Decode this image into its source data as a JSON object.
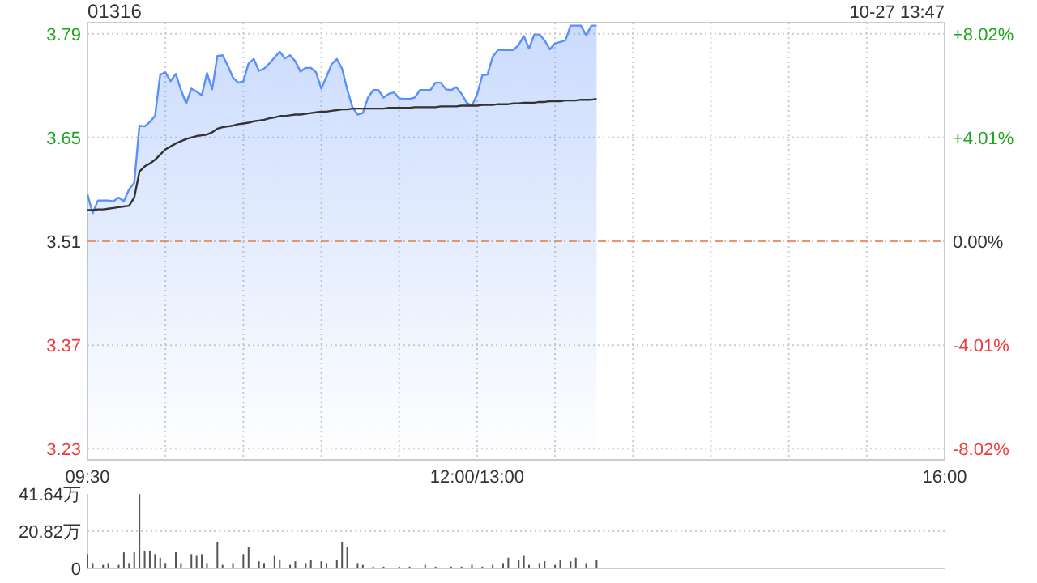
{
  "chart_data": [
    {
      "type": "line",
      "title": "01316",
      "annotations": [
        "10-27 13:47"
      ],
      "grid": true,
      "categories": [
        "09:30",
        null,
        null,
        null,
        null,
        null,
        null,
        null,
        null,
        null,
        null,
        null,
        null,
        null,
        null,
        null,
        null,
        null,
        null,
        null,
        null,
        null,
        null,
        null,
        null,
        null,
        null,
        null,
        null,
        null,
        null,
        null,
        null,
        null,
        null,
        null,
        null,
        null,
        null,
        null,
        null,
        null,
        null,
        null,
        null,
        null,
        null,
        null,
        null,
        null,
        null,
        null,
        null,
        null,
        null,
        null,
        null,
        null,
        null,
        null,
        null,
        null,
        null,
        null,
        null,
        null,
        null,
        null,
        null,
        null,
        null,
        null,
        null,
        null,
        null,
        "12:00/13:00",
        null,
        null,
        null,
        null,
        null,
        null,
        null,
        null,
        null,
        null,
        null,
        null,
        null,
        null,
        null,
        null,
        null,
        null,
        null,
        null,
        null,
        null,
        null,
        null,
        null,
        null,
        null,
        null,
        null,
        null,
        null,
        null,
        null,
        null,
        null,
        null,
        null,
        null,
        null,
        null,
        null,
        null,
        null,
        null,
        null,
        null,
        null,
        null,
        null,
        null,
        null,
        null,
        null,
        null,
        null,
        null,
        null,
        null,
        null,
        null,
        null,
        null,
        null,
        null,
        null,
        null,
        null,
        null,
        null,
        null,
        null,
        null,
        null,
        null,
        null,
        null,
        null,
        null,
        null,
        null,
        null,
        null,
        null,
        null,
        null,
        null,
        null,
        null,
        null,
        "16:00"
      ],
      "ylim": [
        3.215,
        3.805
      ],
      "yticks": [
        3.23,
        3.37,
        3.51,
        3.65,
        3.79
      ],
      "y2lim": [
        -8.45,
        8.45
      ],
      "y2ticks": [
        {
          "value": -8.02,
          "label": "-8.02%"
        },
        {
          "value": -4.01,
          "label": "-4.01%"
        },
        {
          "value": 0,
          "label": "0.00%"
        },
        {
          "value": 4.01,
          "label": "+4.01%"
        },
        {
          "value": 8.02,
          "label": "+8.02%"
        }
      ],
      "ref_lines": [
        {
          "axis": "y",
          "value": 3.51,
          "label": null,
          "color": "#e8956a",
          "line_style": "dashed"
        }
      ],
      "series": [
        {
          "type": "area",
          "color": "#5b8ff9",
          "values": [
            3.573,
            3.548,
            3.565,
            3.565,
            3.565,
            3.564,
            3.569,
            3.564,
            3.58,
            3.589,
            3.666,
            3.665,
            3.671,
            3.679,
            3.735,
            3.738,
            3.726,
            3.736,
            3.714,
            3.696,
            3.716,
            3.712,
            3.707,
            3.737,
            3.715,
            3.76,
            3.761,
            3.747,
            3.731,
            3.724,
            3.726,
            3.75,
            3.756,
            3.74,
            3.743,
            3.75,
            3.758,
            3.766,
            3.757,
            3.761,
            3.753,
            3.739,
            3.744,
            3.744,
            3.738,
            3.716,
            3.732,
            3.749,
            3.756,
            3.743,
            3.715,
            3.691,
            3.681,
            3.683,
            3.704,
            3.714,
            3.714,
            3.704,
            3.709,
            3.711,
            3.703,
            3.702,
            3.702,
            3.704,
            3.714,
            3.714,
            3.714,
            3.724,
            3.724,
            3.715,
            3.714,
            3.718,
            3.709,
            3.697,
            3.693,
            3.708,
            3.734,
            3.735,
            3.759,
            3.768,
            3.768,
            3.768,
            3.768,
            3.775,
            3.787,
            3.77,
            3.789,
            3.789,
            3.781,
            3.769,
            3.777,
            3.779,
            3.781,
            3.801,
            3.801,
            3.801,
            3.788,
            3.801,
            3.801,
            null,
            null,
            null,
            null,
            null,
            null,
            null,
            null,
            null,
            null,
            null,
            null,
            null,
            null,
            null,
            null,
            null,
            null,
            null,
            null,
            null,
            null,
            null,
            null,
            null,
            null,
            null,
            null,
            null,
            null,
            null,
            null,
            null,
            null,
            null,
            null,
            null,
            null,
            null,
            null,
            null,
            null,
            null,
            null,
            null,
            null,
            null,
            null,
            null,
            null,
            null,
            null,
            null,
            null,
            null,
            null,
            null,
            null,
            null,
            null,
            null,
            null,
            null,
            null,
            null,
            null,
            null
          ]
        },
        {
          "color": "#333333",
          "values": [
            3.552,
            3.552,
            3.553,
            3.553,
            3.554,
            3.555,
            3.556,
            3.557,
            3.558,
            3.569,
            3.604,
            3.611,
            3.615,
            3.62,
            3.627,
            3.634,
            3.638,
            3.642,
            3.645,
            3.648,
            3.65,
            3.652,
            3.653,
            3.654,
            3.657,
            3.662,
            3.664,
            3.665,
            3.666,
            3.668,
            3.669,
            3.67,
            3.672,
            3.673,
            3.674,
            3.676,
            3.677,
            3.679,
            3.679,
            3.68,
            3.681,
            3.681,
            3.682,
            3.683,
            3.684,
            3.685,
            3.685,
            3.686,
            3.687,
            3.688,
            3.688,
            3.689,
            3.689,
            3.689,
            3.689,
            3.689,
            3.689,
            3.689,
            3.69,
            3.69,
            3.69,
            3.69,
            3.69,
            3.691,
            3.691,
            3.691,
            3.691,
            3.691,
            3.692,
            3.692,
            3.692,
            3.692,
            3.693,
            3.693,
            3.693,
            3.693,
            3.694,
            3.694,
            3.694,
            3.695,
            3.695,
            3.695,
            3.696,
            3.696,
            3.697,
            3.697,
            3.697,
            3.698,
            3.698,
            3.699,
            3.699,
            3.699,
            3.7,
            3.7,
            3.7,
            3.701,
            3.701,
            3.701,
            3.702,
            null,
            null,
            null,
            null,
            null,
            null,
            null,
            null,
            null,
            null,
            null,
            null,
            null,
            null,
            null,
            null,
            null,
            null,
            null,
            null,
            null,
            null,
            null,
            null,
            null,
            null,
            null,
            null,
            null,
            null,
            null,
            null,
            null,
            null,
            null,
            null,
            null,
            null,
            null,
            null,
            null,
            null,
            null,
            null,
            null,
            null,
            null,
            null,
            null,
            null,
            null,
            null,
            null,
            null,
            null,
            null,
            null,
            null,
            null,
            null,
            null,
            null,
            null,
            null,
            null,
            null,
            null
          ]
        }
      ]
    },
    {
      "type": "bar",
      "grid": "y",
      "tick_labels": "y",
      "categories": [
        null,
        null,
        null,
        null,
        null,
        null,
        null,
        null,
        null,
        null,
        null,
        null,
        null,
        null,
        null,
        null,
        null,
        null,
        null,
        null,
        null,
        null,
        null,
        null,
        null,
        null,
        null,
        null,
        null,
        null,
        null,
        null,
        null,
        null,
        null,
        null,
        null,
        null,
        null,
        null,
        null,
        null,
        null,
        null,
        null,
        null,
        null,
        null,
        null,
        null,
        null,
        null,
        null,
        null,
        null,
        null,
        null,
        null,
        null,
        null,
        null,
        null,
        null,
        null,
        null,
        null,
        null,
        null,
        null,
        null,
        null,
        null,
        null,
        null,
        null,
        null,
        null,
        null,
        null,
        null,
        null,
        null,
        null,
        null,
        null,
        null,
        null,
        null,
        null,
        null,
        null,
        null,
        null,
        null,
        null,
        null,
        null,
        null,
        null,
        null,
        null,
        null,
        null,
        null,
        null,
        null,
        null,
        null,
        null,
        null,
        null,
        null,
        null,
        null,
        null,
        null,
        null,
        null,
        null,
        null,
        null,
        null,
        null,
        null,
        null,
        null,
        null,
        null,
        null,
        null,
        null,
        null,
        null,
        null,
        null,
        null,
        null,
        null,
        null,
        null,
        null,
        null,
        null,
        null,
        null,
        null,
        null,
        null,
        null,
        null,
        null,
        null,
        null,
        null,
        null,
        null,
        null,
        null,
        null,
        null,
        null,
        null,
        null,
        null,
        null,
        null
      ],
      "ylim": [
        0,
        41.64
      ],
      "yticks": [
        0,
        {
          "value": 20.82,
          "label": "20.82万"
        },
        {
          "value": 41.64,
          "label": "41.64万"
        }
      ],
      "series": [
        {
          "color": "#555555",
          "values": [
            8,
            3,
            null,
            2,
            3,
            null,
            2,
            9,
            3,
            9,
            41.6,
            10,
            10,
            8,
            6,
            3,
            null,
            9,
            3,
            null,
            8,
            7,
            8,
            3,
            null,
            15,
            2,
            null,
            3,
            null,
            8,
            12,
            null,
            4,
            3,
            null,
            7,
            5,
            null,
            2,
            4,
            null,
            3,
            5,
            null,
            4,
            3,
            null,
            5,
            15,
            12,
            null,
            3,
            2,
            null,
            1,
            null,
            1,
            null,
            null,
            1,
            null,
            1,
            null,
            null,
            2,
            null,
            1,
            null,
            null,
            1,
            null,
            1,
            null,
            2,
            null,
            1,
            null,
            2,
            null,
            3,
            6,
            null,
            5,
            7,
            2,
            null,
            3,
            4,
            null,
            2,
            5,
            null,
            4,
            6,
            null,
            3,
            null,
            5,
            null,
            null,
            null,
            null,
            null,
            null,
            null,
            null,
            null,
            null,
            null,
            null,
            null,
            null,
            null,
            null,
            null,
            null,
            null,
            null,
            null,
            null,
            null,
            null,
            null,
            null,
            null,
            null,
            null,
            null,
            null,
            null,
            null,
            null,
            null,
            null,
            null,
            null,
            null,
            null,
            null,
            null,
            null,
            null,
            null,
            null,
            null,
            null,
            null,
            null,
            null,
            null,
            null,
            null,
            null,
            null,
            null,
            null,
            null,
            null,
            null,
            null,
            null,
            null,
            null,
            null,
            null
          ]
        }
      ]
    }
  ]
}
